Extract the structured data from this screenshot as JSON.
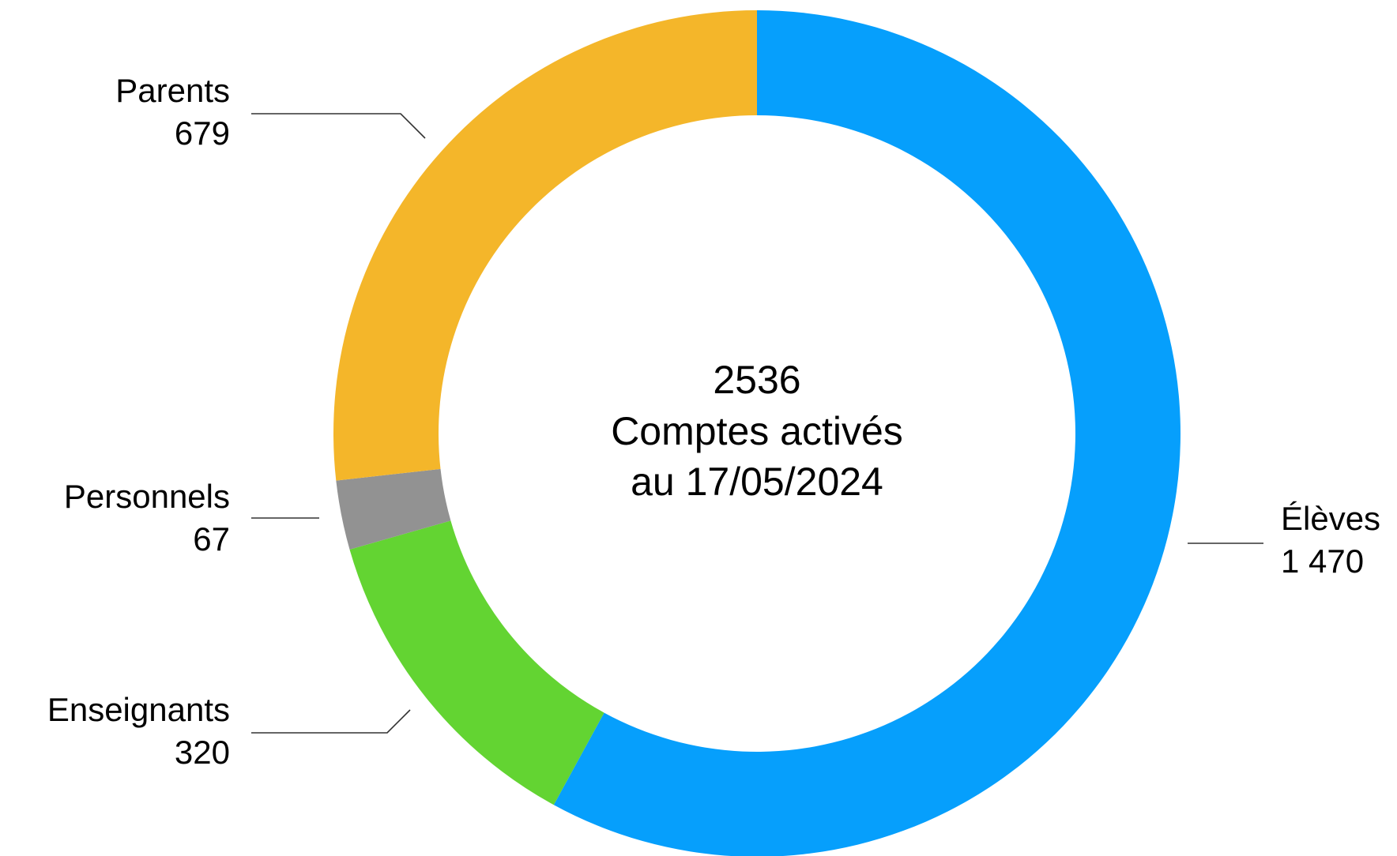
{
  "chart_data": {
    "type": "donut",
    "categories": [
      "Élèves",
      "Enseignants",
      "Personnels",
      "Parents"
    ],
    "values": [
      1470,
      320,
      67,
      679
    ],
    "value_labels": [
      "1 470",
      "320",
      "67",
      "679"
    ],
    "colors": [
      "#069ffc",
      "#63d432",
      "#929292",
      "#f4b62a"
    ],
    "total": 2536,
    "center_text": [
      "Comptes activés",
      "au 17/05/2024"
    ]
  }
}
